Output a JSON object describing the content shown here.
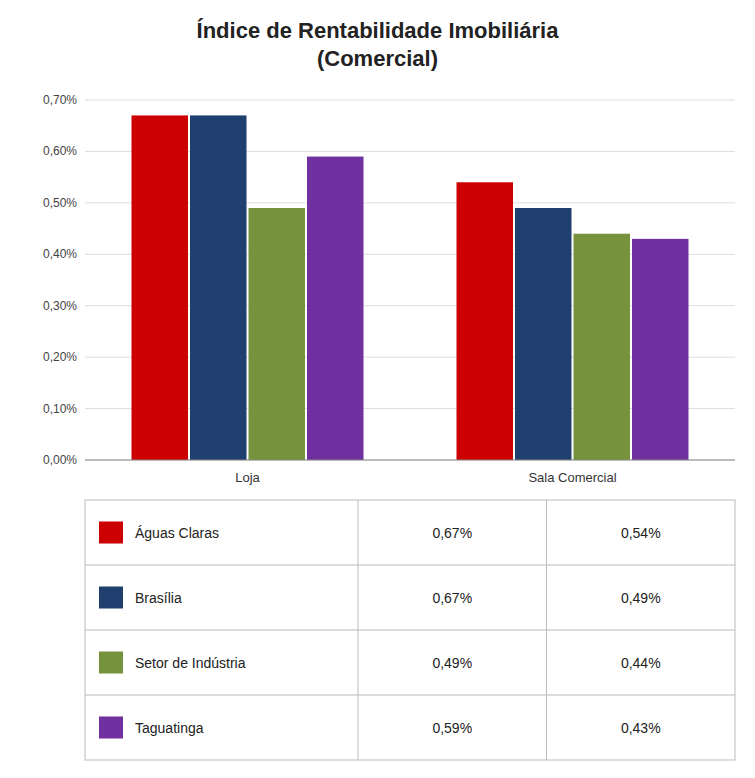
{
  "chart_data": {
    "type": "bar",
    "title": "Índice de Rentabilidade Imobiliária\n(Comercial)",
    "categories": [
      "Loja",
      "Sala Comercial"
    ],
    "series": [
      {
        "name": "Águas Claras",
        "color": "#CC0000",
        "values": [
          0.0067,
          0.0054
        ],
        "value_labels": [
          "0,67%",
          "0,54%"
        ]
      },
      {
        "name": "Brasília",
        "color": "#1F3F6E",
        "values": [
          0.0067,
          0.0049
        ],
        "value_labels": [
          "0,67%",
          "0,49%"
        ]
      },
      {
        "name": "Setor de Indústria",
        "color": "#76923C",
        "values": [
          0.0049,
          0.0044
        ],
        "value_labels": [
          "0,49%",
          "0,44%"
        ]
      },
      {
        "name": "Taguatinga",
        "color": "#7030A0",
        "values": [
          0.0059,
          0.0043
        ],
        "value_labels": [
          "0,59%",
          "0,43%"
        ]
      }
    ],
    "ylim": [
      0,
      0.007
    ],
    "yticks": [
      {
        "value": 0.0,
        "label": "0,00%"
      },
      {
        "value": 0.001,
        "label": "0,10%"
      },
      {
        "value": 0.002,
        "label": "0,20%"
      },
      {
        "value": 0.003,
        "label": "0,30%"
      },
      {
        "value": 0.004,
        "label": "0,40%"
      },
      {
        "value": 0.005,
        "label": "0,50%"
      },
      {
        "value": 0.006,
        "label": "0,60%"
      },
      {
        "value": 0.007,
        "label": "0,70%"
      }
    ],
    "grid": true
  }
}
